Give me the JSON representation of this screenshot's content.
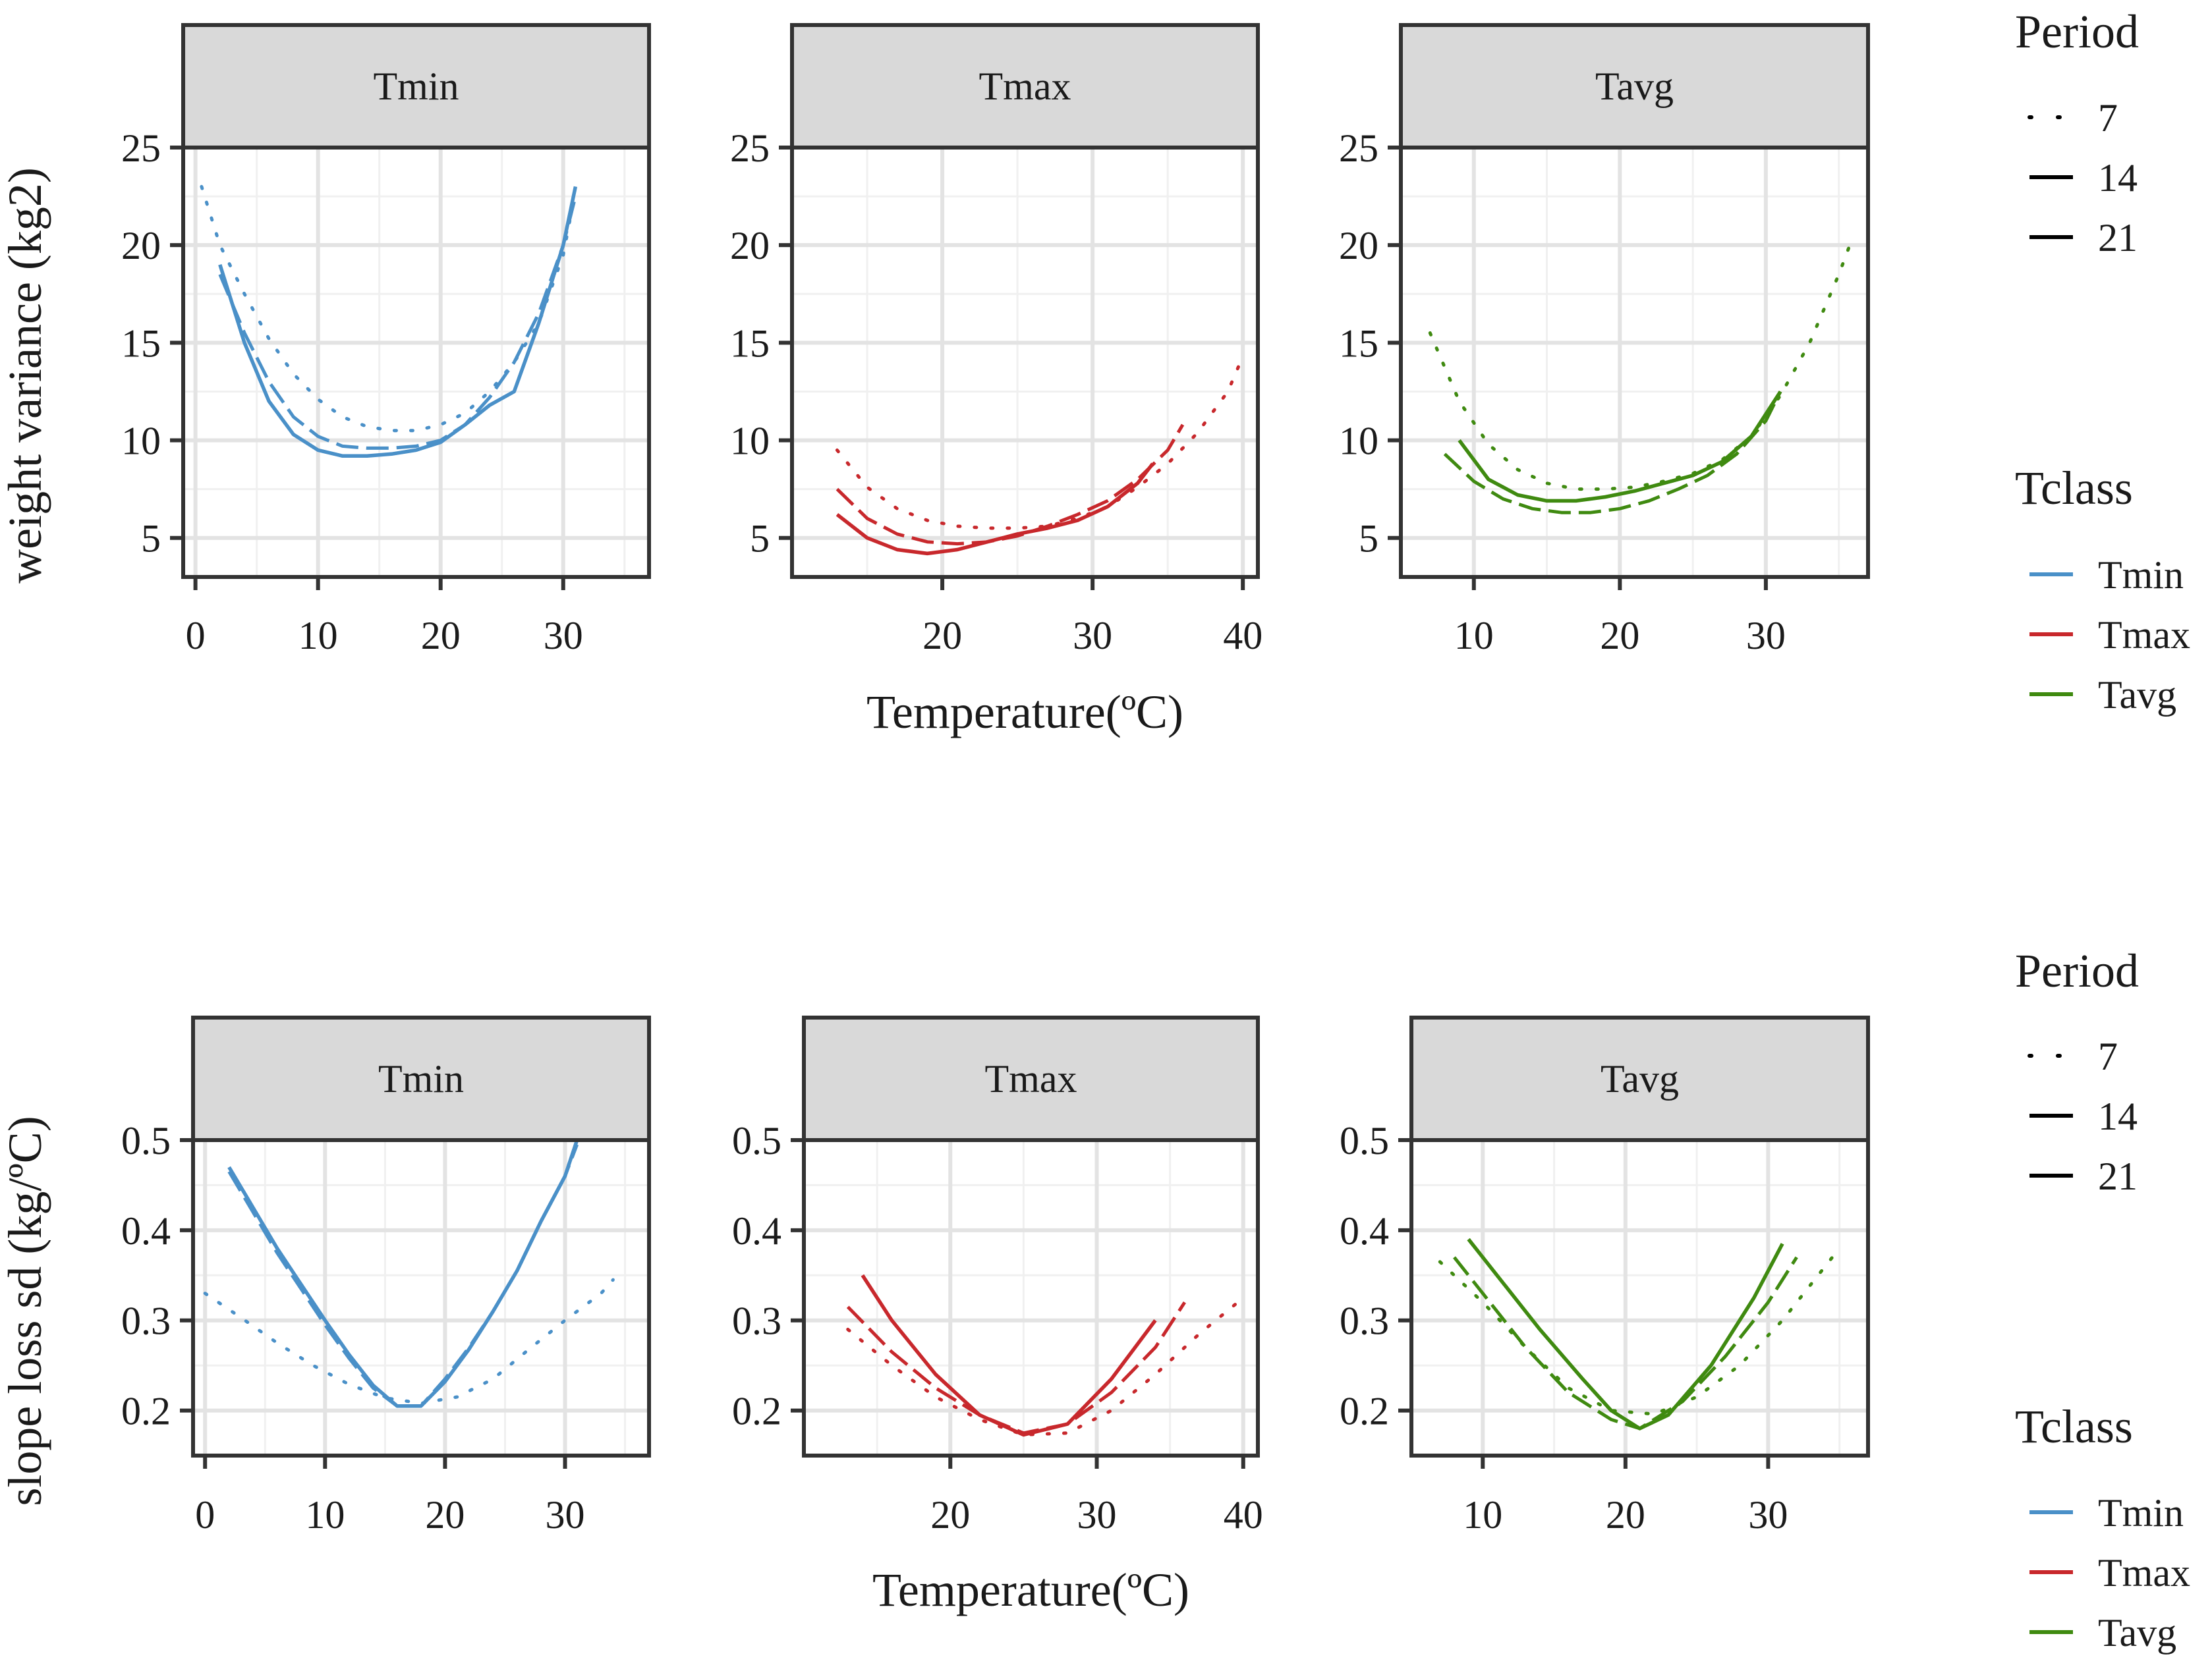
{
  "figure": {
    "x_axis_title": "Temperature(ºC)",
    "legend": {
      "period_title": "Period",
      "period_items": [
        {
          "label": "7",
          "dash": "dotted"
        },
        {
          "label": "14",
          "dash": "dashed"
        },
        {
          "label": "21",
          "dash": "solid"
        }
      ],
      "tclass_title": "Tclass",
      "tclass_items": [
        {
          "label": "Tmin",
          "color": "#4a90c8"
        },
        {
          "label": "Tmax",
          "color": "#c8282c"
        },
        {
          "label": "Tavg",
          "color": "#3f8a10"
        }
      ]
    }
  },
  "chart_data": [
    {
      "type": "line",
      "title": "",
      "ylabel": "weight variance (kg2)",
      "xlabel": "Temperature(ºC)",
      "ylim": [
        3,
        25
      ],
      "yticks": [
        5,
        10,
        15,
        20,
        25
      ],
      "panels": [
        {
          "strip": "Tmin",
          "color": "#4a90c8",
          "xlim": [
            -1,
            37
          ],
          "xticks": [
            0,
            10,
            20,
            30
          ],
          "series": [
            {
              "period": "7",
              "x": [
                0.5,
                2,
                4,
                6,
                8,
                10,
                12,
                14,
                16,
                18,
                20,
                22,
                24,
                26,
                28,
                30,
                31
              ],
              "y": [
                23.0,
                20.0,
                17.5,
                15.2,
                13.4,
                12.1,
                11.2,
                10.7,
                10.5,
                10.5,
                10.8,
                11.4,
                12.5,
                14.0,
                16.0,
                19.5,
                22.8
              ]
            },
            {
              "period": "14",
              "x": [
                2,
                4,
                6,
                8,
                10,
                12,
                14,
                16,
                18,
                20,
                22,
                24,
                26,
                28,
                30,
                31
              ],
              "y": [
                18.5,
                15.5,
                13.0,
                11.2,
                10.2,
                9.7,
                9.6,
                9.6,
                9.7,
                10.0,
                10.8,
                12.2,
                14.0,
                16.5,
                20.0,
                22.5
              ]
            },
            {
              "period": "21",
              "x": [
                2,
                4,
                6,
                8,
                10,
                12,
                14,
                16,
                18,
                20,
                22,
                24,
                26,
                28,
                30,
                31
              ],
              "y": [
                19.0,
                15.0,
                12.0,
                10.3,
                9.5,
                9.2,
                9.2,
                9.3,
                9.5,
                9.9,
                10.8,
                11.8,
                12.5,
                16.0,
                20.0,
                23.0
              ]
            }
          ]
        },
        {
          "strip": "Tmax",
          "color": "#c8282c",
          "xlim": [
            10,
            41
          ],
          "xticks": [
            20,
            30,
            40
          ],
          "series": [
            {
              "period": "7",
              "x": [
                13,
                15,
                17,
                19,
                21,
                23,
                25,
                27,
                29,
                31,
                33,
                35,
                37,
                39,
                40
              ],
              "y": [
                9.5,
                7.6,
                6.5,
                5.9,
                5.6,
                5.5,
                5.5,
                5.6,
                6.0,
                6.6,
                7.6,
                8.8,
                10.4,
                12.5,
                14.3
              ]
            },
            {
              "period": "14",
              "x": [
                13,
                15,
                17,
                19,
                21,
                23,
                25,
                27,
                29,
                31,
                33,
                35,
                36
              ],
              "y": [
                7.5,
                6.0,
                5.2,
                4.8,
                4.7,
                4.8,
                5.1,
                5.6,
                6.2,
                6.9,
                8.0,
                9.5,
                10.8
              ]
            },
            {
              "period": "21",
              "x": [
                13,
                15,
                17,
                19,
                21,
                23,
                25,
                27,
                29,
                31,
                33,
                34
              ],
              "y": [
                6.2,
                5.0,
                4.4,
                4.2,
                4.4,
                4.8,
                5.2,
                5.5,
                5.9,
                6.6,
                7.8,
                8.8
              ]
            }
          ]
        },
        {
          "strip": "Tavg",
          "color": "#3f8a10",
          "xlim": [
            5,
            37
          ],
          "xticks": [
            10,
            20,
            30
          ],
          "series": [
            {
              "period": "7",
              "x": [
                7,
                9,
                11,
                13,
                15,
                17,
                19,
                21,
                23,
                25,
                27,
                29,
                31,
                33,
                35,
                36
              ],
              "y": [
                15.5,
                12.0,
                9.8,
                8.5,
                7.8,
                7.5,
                7.5,
                7.6,
                7.9,
                8.3,
                9.0,
                10.2,
                12.3,
                15.0,
                18.5,
                20.5
              ]
            },
            {
              "period": "14",
              "x": [
                8,
                10,
                12,
                14,
                16,
                18,
                20,
                22,
                24,
                26,
                28,
                30,
                31
              ],
              "y": [
                9.3,
                7.9,
                7.0,
                6.5,
                6.3,
                6.3,
                6.5,
                6.9,
                7.5,
                8.2,
                9.3,
                11.0,
                12.5
              ]
            },
            {
              "period": "21",
              "x": [
                9,
                11,
                13,
                15,
                17,
                19,
                21,
                23,
                25,
                27,
                29,
                31
              ],
              "y": [
                10.0,
                8.0,
                7.2,
                6.9,
                6.9,
                7.1,
                7.4,
                7.8,
                8.2,
                8.9,
                10.2,
                12.5
              ]
            }
          ]
        }
      ]
    },
    {
      "type": "line",
      "title": "",
      "ylabel": "slope loss sd (kg/ºC)",
      "xlabel": "Temperature(ºC)",
      "ylim": [
        0.15,
        0.5
      ],
      "yticks": [
        0.2,
        0.3,
        0.4,
        0.5
      ],
      "panels": [
        {
          "strip": "Tmin",
          "color": "#4a90c8",
          "xlim": [
            -1,
            37
          ],
          "xticks": [
            0,
            10,
            20,
            30
          ],
          "series": [
            {
              "period": "7",
              "x": [
                0,
                3,
                6,
                9,
                12,
                15,
                18,
                21,
                24,
                27,
                30,
                33,
                34
              ],
              "y": [
                0.33,
                0.303,
                0.275,
                0.25,
                0.229,
                0.214,
                0.208,
                0.215,
                0.235,
                0.268,
                0.3,
                0.33,
                0.345
              ]
            },
            {
              "period": "14",
              "x": [
                2,
                4,
                6,
                8,
                10,
                12,
                14,
                16,
                18,
                20,
                22,
                24,
                26,
                28,
                30,
                31
              ],
              "y": [
                0.465,
                0.42,
                0.375,
                0.335,
                0.295,
                0.258,
                0.225,
                0.205,
                0.205,
                0.235,
                0.27,
                0.31,
                0.355,
                0.41,
                0.46,
                0.495
              ]
            },
            {
              "period": "21",
              "x": [
                2,
                4,
                6,
                8,
                10,
                12,
                14,
                16,
                18,
                20,
                22,
                24,
                26,
                28,
                30,
                31
              ],
              "y": [
                0.47,
                0.425,
                0.38,
                0.34,
                0.3,
                0.262,
                0.228,
                0.205,
                0.205,
                0.232,
                0.268,
                0.31,
                0.355,
                0.41,
                0.46,
                0.5
              ]
            }
          ]
        },
        {
          "strip": "Tmax",
          "color": "#c8282c",
          "xlim": [
            10,
            41
          ],
          "xticks": [
            20,
            30,
            40
          ],
          "series": [
            {
              "period": "7",
              "x": [
                13,
                16,
                19,
                22,
                25,
                28,
                31,
                34,
                37,
                40
              ],
              "y": [
                0.29,
                0.25,
                0.215,
                0.19,
                0.173,
                0.175,
                0.2,
                0.24,
                0.285,
                0.325
              ]
            },
            {
              "period": "14",
              "x": [
                13,
                16,
                19,
                22,
                25,
                28,
                31,
                34,
                36
              ],
              "y": [
                0.315,
                0.265,
                0.225,
                0.195,
                0.175,
                0.185,
                0.22,
                0.27,
                0.32
              ]
            },
            {
              "period": "21",
              "x": [
                14,
                16,
                19,
                22,
                25,
                28,
                31,
                34
              ],
              "y": [
                0.35,
                0.3,
                0.24,
                0.195,
                0.173,
                0.185,
                0.235,
                0.3
              ]
            }
          ]
        },
        {
          "strip": "Tavg",
          "color": "#3f8a10",
          "xlim": [
            5,
            37
          ],
          "xticks": [
            10,
            20,
            30
          ],
          "series": [
            {
              "period": "7",
              "x": [
                7,
                10,
                13,
                16,
                19,
                22,
                25,
                28,
                31,
                34,
                35
              ],
              "y": [
                0.365,
                0.32,
                0.27,
                0.225,
                0.2,
                0.196,
                0.215,
                0.25,
                0.3,
                0.36,
                0.38
              ]
            },
            {
              "period": "14",
              "x": [
                8,
                10,
                13,
                16,
                19,
                21,
                24,
                27,
                30,
                32
              ],
              "y": [
                0.37,
                0.33,
                0.27,
                0.22,
                0.19,
                0.18,
                0.21,
                0.26,
                0.32,
                0.37
              ]
            },
            {
              "period": "21",
              "x": [
                9,
                11,
                14,
                17,
                19,
                21,
                23,
                26,
                29,
                31
              ],
              "y": [
                0.39,
                0.35,
                0.29,
                0.235,
                0.2,
                0.18,
                0.195,
                0.25,
                0.325,
                0.385
              ]
            }
          ]
        }
      ]
    }
  ]
}
